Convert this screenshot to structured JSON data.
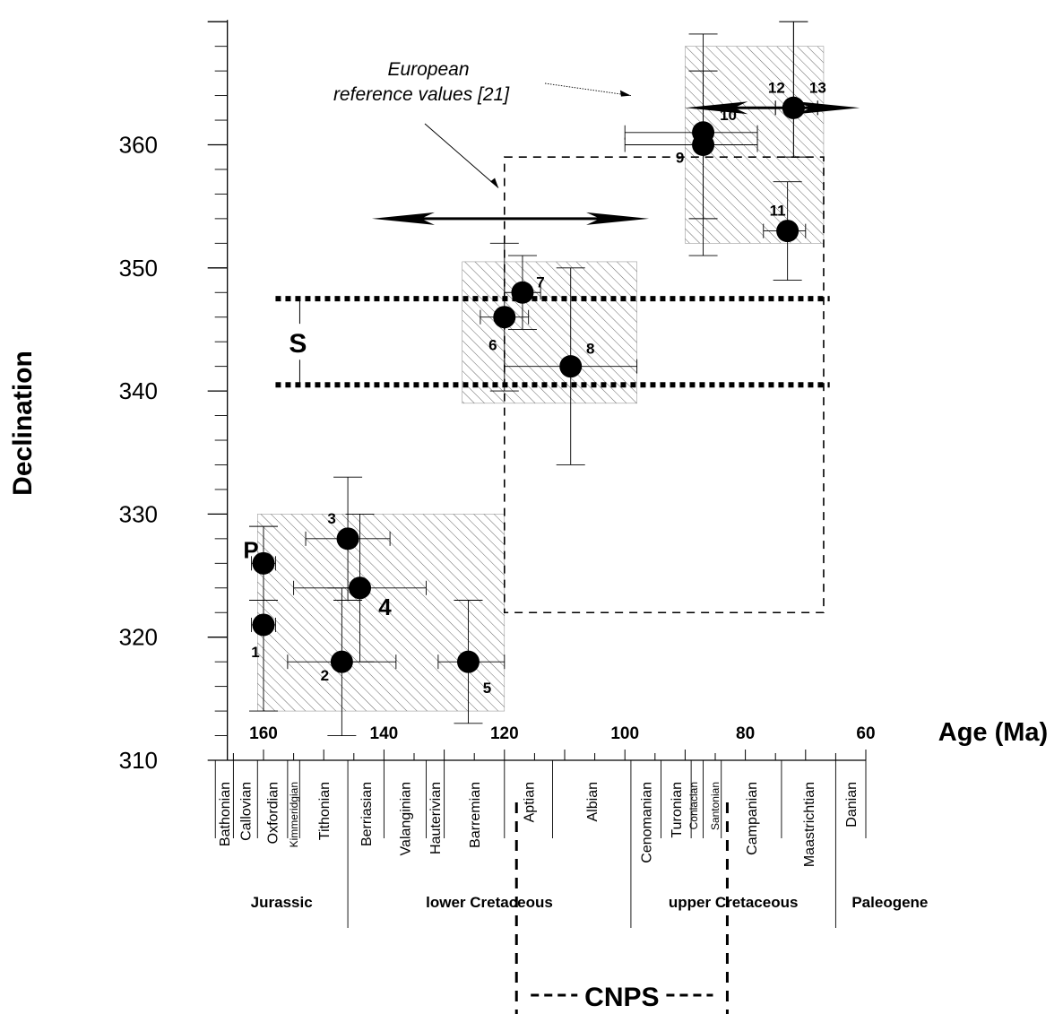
{
  "chart_data": {
    "type": "scatter",
    "ylabel": "Declination",
    "xlabel": "Age (Ma)",
    "xlim": [
      166,
      60
    ],
    "ylim": [
      310,
      370
    ],
    "x_ticks": [
      {
        "value": 160,
        "label": "160"
      },
      {
        "value": 140,
        "label": "140"
      },
      {
        "value": 120,
        "label": "120"
      },
      {
        "value": 100,
        "label": "100"
      },
      {
        "value": 80,
        "label": "80"
      },
      {
        "value": 60,
        "label": "60"
      }
    ],
    "y_ticks": [
      {
        "value": 310,
        "label": "310"
      },
      {
        "value": 320,
        "label": "320"
      },
      {
        "value": 330,
        "label": "330"
      },
      {
        "value": 340,
        "label": "340"
      },
      {
        "value": 350,
        "label": "350"
      },
      {
        "value": 360,
        "label": "360"
      }
    ],
    "points": [
      {
        "label": "1",
        "x": 160,
        "y": 321,
        "x_err": [
          158,
          162
        ],
        "y_err": [
          314,
          323
        ]
      },
      {
        "label": "P",
        "x": 160,
        "y": 326,
        "x_err": [
          158,
          162
        ],
        "y_err": [
          323,
          329
        ]
      },
      {
        "label": "2",
        "x": 147,
        "y": 318,
        "x_err": [
          138,
          156
        ],
        "y_err": [
          312,
          324
        ]
      },
      {
        "label": "3",
        "x": 146,
        "y": 328,
        "x_err": [
          139,
          153
        ],
        "y_err": [
          323,
          333
        ]
      },
      {
        "label": "4",
        "x": 144,
        "y": 324,
        "x_err": [
          133,
          155
        ],
        "y_err": [
          318,
          330
        ]
      },
      {
        "label": "5",
        "x": 126,
        "y": 318,
        "x_err": [
          120,
          131
        ],
        "y_err": [
          313,
          323
        ]
      },
      {
        "label": "6",
        "x": 120,
        "y": 346,
        "x_err": [
          116,
          124
        ],
        "y_err": [
          340,
          352
        ]
      },
      {
        "label": "7",
        "x": 117,
        "y": 348,
        "x_err": [
          114,
          120
        ],
        "y_err": [
          345,
          351
        ]
      },
      {
        "label": "8",
        "x": 109,
        "y": 342,
        "x_err": [
          98,
          120
        ],
        "y_err": [
          334,
          350
        ]
      },
      {
        "label": "9",
        "x": 87,
        "y": 360,
        "x_err": [
          78,
          100
        ],
        "y_err": [
          351,
          369
        ]
      },
      {
        "label": "10",
        "x": 87,
        "y": 361,
        "x_err": [
          78,
          100
        ],
        "y_err": [
          354,
          366
        ]
      },
      {
        "label": "11",
        "x": 73,
        "y": 353,
        "x_err": [
          70,
          77
        ],
        "y_err": [
          349,
          357
        ]
      },
      {
        "label": "12",
        "x": 72,
        "y": 363,
        "x_err": [
          68,
          75
        ],
        "y_err": [
          359,
          370
        ]
      },
      {
        "label": "13",
        "x": 72,
        "y": 363,
        "x_err": [
          68,
          75
        ],
        "y_err": [
          359,
          370
        ]
      }
    ],
    "hatched_regions": [
      {
        "x_range": [
          161,
          120
        ],
        "y_range": [
          314,
          330
        ]
      },
      {
        "x_range": [
          127,
          98
        ],
        "y_range": [
          339,
          350.5
        ]
      },
      {
        "x_range": [
          90,
          67
        ],
        "y_range": [
          352,
          368
        ]
      }
    ],
    "s_band": {
      "label": "S",
      "y_range": [
        340.5,
        347.5
      ],
      "x_range": [
        158,
        66
      ]
    },
    "cnps_box": {
      "x_range": [
        120,
        67
      ],
      "y_range": [
        322,
        359
      ]
    },
    "arrows": [
      {
        "y": 354,
        "x_range": [
          142,
          96
        ]
      },
      {
        "y": 363,
        "x_range": [
          90,
          61
        ]
      }
    ],
    "annotation": {
      "lines": [
        "European",
        "reference values [21]"
      ],
      "targets": [
        {
          "x": 121,
          "y": 356.5
        },
        {
          "x": 99,
          "y": 364
        }
      ]
    },
    "stages": [
      {
        "name": "Bathonian",
        "start": 168,
        "end": 165
      },
      {
        "name": "Callovian",
        "start": 165,
        "end": 161
      },
      {
        "name": "Oxfordian",
        "start": 161,
        "end": 156
      },
      {
        "name": "Kimmeridgian",
        "start": 156,
        "end": 154
      },
      {
        "name": "Tithonian",
        "start": 154,
        "end": 146
      },
      {
        "name": "Berriasian",
        "start": 146,
        "end": 140
      },
      {
        "name": "Valanginian",
        "start": 140,
        "end": 133
      },
      {
        "name": "Hauterivian",
        "start": 133,
        "end": 130
      },
      {
        "name": "Barremian",
        "start": 130,
        "end": 120
      },
      {
        "name": "Aptian",
        "start": 120,
        "end": 112
      },
      {
        "name": "Albian",
        "start": 112,
        "end": 99
      },
      {
        "name": "Cenomanian",
        "start": 99,
        "end": 94
      },
      {
        "name": "Turonian",
        "start": 94,
        "end": 89
      },
      {
        "name": "Coniacian",
        "start": 89,
        "end": 87
      },
      {
        "name": "Santonian",
        "start": 87,
        "end": 84
      },
      {
        "name": "Campanian",
        "start": 84,
        "end": 74
      },
      {
        "name": "Maastrichtian",
        "start": 74,
        "end": 65
      },
      {
        "name": "Danian",
        "start": 65,
        "end": 60
      }
    ],
    "periods": [
      {
        "name": "Jurassic",
        "start": 168,
        "end": 146
      },
      {
        "name": "lower Cretaceous",
        "start": 146,
        "end": 99
      },
      {
        "name": "upper Cretaceous",
        "start": 99,
        "end": 65
      },
      {
        "name": "Paleogene",
        "start": 65,
        "end": 58
      }
    ],
    "cnps": {
      "label": "CNPS",
      "start": 118,
      "end": 83
    }
  }
}
